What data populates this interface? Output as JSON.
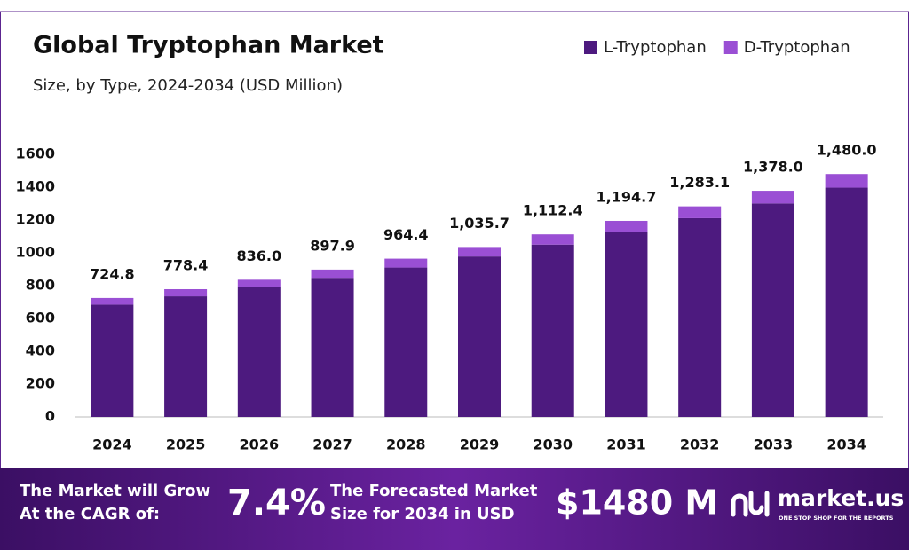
{
  "chart_data": {
    "type": "stacked-bar",
    "title": "Global Tryptophan Market",
    "subtitle": "Size, by Type, 2024-2034 (USD Million)",
    "categories": [
      "2024",
      "2025",
      "2026",
      "2027",
      "2028",
      "2029",
      "2030",
      "2031",
      "2032",
      "2033",
      "2034"
    ],
    "series": [
      {
        "name": "L-Tryptophan",
        "color": "#4d1a7f",
        "values": [
          684.2,
          734.8,
          789.2,
          847.6,
          910.4,
          977.7,
          1050.1,
          1127.8,
          1211.2,
          1300.8,
          1397.1
        ]
      },
      {
        "name": "D-Tryptophan",
        "color": "#9a4fd4",
        "values": [
          40.6,
          43.6,
          46.8,
          50.3,
          54.0,
          58.0,
          62.3,
          66.9,
          71.9,
          77.2,
          82.9
        ]
      }
    ],
    "totals": {
      "values": [
        724.8,
        778.4,
        836.0,
        897.9,
        964.4,
        1035.7,
        1112.4,
        1194.7,
        1283.1,
        1378.0,
        1480.0
      ],
      "value_labels": [
        "724.8",
        "778.4",
        "836.0",
        "897.9",
        "964.4",
        "1,035.7",
        "1,112.4",
        "1,194.7",
        "1,283.1",
        "1,378.0",
        "1,480.0"
      ]
    },
    "ylim": [
      0,
      1600
    ],
    "yticks": [
      0,
      200,
      400,
      600,
      800,
      1000,
      1200,
      1400,
      1600
    ],
    "grid": false,
    "legend": "top-right"
  },
  "footer": {
    "cagr_text": [
      "The Market will Grow",
      "At the CAGR of:"
    ],
    "cagr_value": "7.4%",
    "forecast_text": [
      "The Forecasted Market",
      "Size for 2034 in USD"
    ],
    "forecast_value": "$1480 M",
    "brand": "market.us",
    "tagline": "ONE STOP SHOP FOR THE REPORTS"
  }
}
